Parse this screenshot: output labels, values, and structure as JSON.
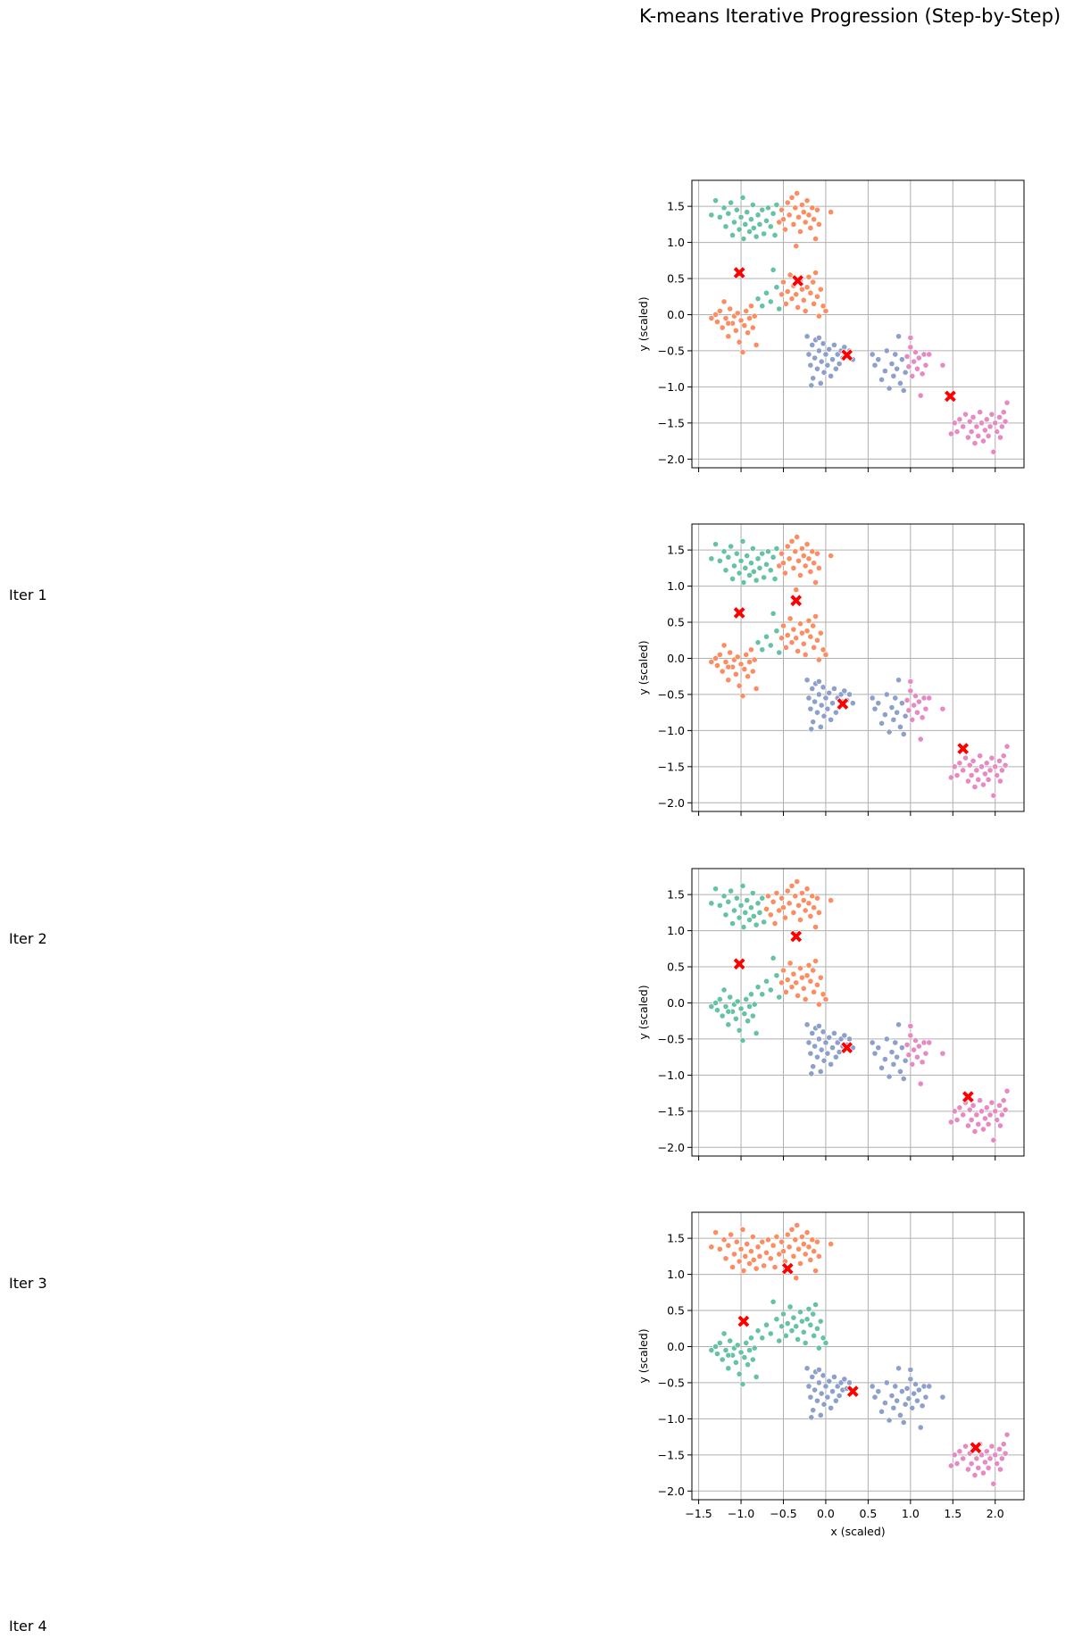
{
  "figure": {
    "title": "K-means Iterative Progression (Step-by-Step)",
    "row_labels": [
      "Iter 1",
      "Iter 2",
      "Iter 3",
      "Iter 4"
    ]
  },
  "colors": {
    "green": "#66c2a5",
    "orange": "#fc8d62",
    "blue": "#8da0cb",
    "pink": "#e78ac3",
    "centroid": "#ff0000",
    "grid": "#b0b0b0"
  },
  "chart_data": [
    {
      "type": "scatter",
      "title": "",
      "xlabel": "",
      "ylabel": "y (scaled)",
      "xlim": [
        -1.58,
        2.34
      ],
      "ylim": [
        -2.12,
        1.86
      ],
      "xticks": [
        -1.5,
        -1.0,
        -0.5,
        0.0,
        0.5,
        1.0,
        1.5,
        2.0
      ],
      "yticks": [
        -2.0,
        -1.5,
        -1.0,
        -0.5,
        0.0,
        0.5,
        1.0,
        1.5
      ],
      "grid": true,
      "clusters": [
        {
          "name": "",
          "color": "green",
          "groups": [
            "G1a",
            "G1b",
            "G2b_left"
          ]
        },
        {
          "name": "",
          "color": "orange",
          "groups": [
            "G1c",
            "G2a",
            "G2b_right"
          ]
        },
        {
          "name": "",
          "color": "blue",
          "groups": [
            "G3",
            "G4a"
          ]
        },
        {
          "name": "",
          "color": "pink",
          "groups": [
            "G4b",
            "G5"
          ]
        }
      ],
      "centroids": [
        [
          -1.02,
          0.58
        ],
        [
          -0.33,
          0.47
        ],
        [
          0.25,
          -0.56
        ],
        [
          1.47,
          -1.13
        ]
      ]
    },
    {
      "type": "scatter",
      "title": "",
      "xlabel": "",
      "ylabel": "y (scaled)",
      "xlim": [
        -1.58,
        2.34
      ],
      "ylim": [
        -2.12,
        1.86
      ],
      "xticks": [
        -1.5,
        -1.0,
        -0.5,
        0.0,
        0.5,
        1.0,
        1.5,
        2.0
      ],
      "yticks": [
        -2.0,
        -1.5,
        -1.0,
        -0.5,
        0.0,
        0.5,
        1.0,
        1.5
      ],
      "grid": true,
      "clusters": [
        {
          "name": "",
          "color": "green",
          "groups": [
            "G1a",
            "G1b",
            "G2b_left"
          ]
        },
        {
          "name": "",
          "color": "orange",
          "groups": [
            "G1c",
            "G2a",
            "G2b_right"
          ]
        },
        {
          "name": "",
          "color": "blue",
          "groups": [
            "G3",
            "G4a"
          ]
        },
        {
          "name": "",
          "color": "pink",
          "groups": [
            "G4b",
            "G5"
          ]
        }
      ],
      "centroids": [
        [
          -1.02,
          0.63
        ],
        [
          -0.35,
          0.8
        ],
        [
          0.2,
          -0.63
        ],
        [
          1.62,
          -1.25
        ]
      ]
    },
    {
      "type": "scatter",
      "title": "",
      "xlabel": "",
      "ylabel": "y (scaled)",
      "xlim": [
        -1.58,
        2.34
      ],
      "ylim": [
        -2.12,
        1.86
      ],
      "xticks": [
        -1.5,
        -1.0,
        -0.5,
        0.0,
        0.5,
        1.0,
        1.5,
        2.0
      ],
      "yticks": [
        -2.0,
        -1.5,
        -1.0,
        -0.5,
        0.0,
        0.5,
        1.0,
        1.5
      ],
      "grid": true,
      "clusters": [
        {
          "name": "",
          "color": "green",
          "groups": [
            "G1a",
            "G2a",
            "G2b_left"
          ]
        },
        {
          "name": "",
          "color": "orange",
          "groups": [
            "G1b",
            "G1c",
            "G2b_right"
          ]
        },
        {
          "name": "",
          "color": "blue",
          "groups": [
            "G3",
            "G4a"
          ]
        },
        {
          "name": "",
          "color": "pink",
          "groups": [
            "G4b",
            "G5"
          ]
        }
      ],
      "centroids": [
        [
          -1.02,
          0.54
        ],
        [
          -0.35,
          0.92
        ],
        [
          0.25,
          -0.62
        ],
        [
          1.68,
          -1.3
        ]
      ]
    },
    {
      "type": "scatter",
      "title": "",
      "xlabel": "x (scaled)",
      "ylabel": "y (scaled)",
      "xlim": [
        -1.58,
        2.34
      ],
      "ylim": [
        -2.12,
        1.86
      ],
      "xticks": [
        -1.5,
        -1.0,
        -0.5,
        0.0,
        0.5,
        1.0,
        1.5,
        2.0
      ],
      "yticks": [
        -2.0,
        -1.5,
        -1.0,
        -0.5,
        0.0,
        0.5,
        1.0,
        1.5
      ],
      "grid": true,
      "clusters": [
        {
          "name": "",
          "color": "green",
          "groups": [
            "G2a",
            "G2b_left",
            "G2b_right"
          ]
        },
        {
          "name": "",
          "color": "orange",
          "groups": [
            "G1a",
            "G1b",
            "G1c"
          ]
        },
        {
          "name": "",
          "color": "blue",
          "groups": [
            "G3",
            "G4a",
            "G4b"
          ]
        },
        {
          "name": "",
          "color": "pink",
          "groups": [
            "G5"
          ]
        }
      ],
      "centroids": [
        [
          -0.97,
          0.35
        ],
        [
          -0.45,
          1.08
        ],
        [
          0.32,
          -0.62
        ],
        [
          1.77,
          -1.4
        ]
      ]
    }
  ],
  "point_groups": {
    "G1a": [
      [
        -1.35,
        1.38
      ],
      [
        -1.3,
        1.58
      ],
      [
        -1.25,
        1.35
      ],
      [
        -1.2,
        1.48
      ],
      [
        -1.18,
        1.22
      ],
      [
        -1.15,
        1.4
      ],
      [
        -1.12,
        1.55
      ],
      [
        -1.1,
        1.1
      ],
      [
        -1.08,
        1.28
      ],
      [
        -1.05,
        1.45
      ],
      [
        -1.02,
        1.18
      ],
      [
        -1.0,
        1.35
      ],
      [
        -0.98,
        1.62
      ],
      [
        -0.97,
        1.05
      ],
      [
        -0.95,
        1.25
      ],
      [
        -0.93,
        1.42
      ],
      [
        -0.9,
        1.15
      ],
      [
        -0.88,
        1.32
      ],
      [
        -0.86,
        1.52
      ],
      [
        -0.85,
        1.2
      ],
      [
        -0.82,
        1.08
      ],
      [
        -0.8,
        1.38
      ],
      [
        -0.78,
        1.25
      ],
      [
        -0.75,
        1.45
      ],
      [
        -0.73,
        1.12
      ]
    ],
    "G1b": [
      [
        -0.7,
        1.3
      ],
      [
        -0.68,
        1.48
      ],
      [
        -0.65,
        1.22
      ],
      [
        -0.62,
        1.4
      ],
      [
        -0.6,
        1.1
      ],
      [
        -0.58,
        1.52
      ]
    ],
    "G1c": [
      [
        -0.55,
        1.28
      ],
      [
        -0.52,
        1.45
      ],
      [
        -0.5,
        1.32
      ],
      [
        -0.48,
        1.18
      ],
      [
        -0.45,
        1.55
      ],
      [
        -0.43,
        1.38
      ],
      [
        -0.4,
        1.62
      ],
      [
        -0.38,
        1.25
      ],
      [
        -0.36,
        1.48
      ],
      [
        -0.34,
        1.68
      ],
      [
        -0.32,
        1.35
      ],
      [
        -0.3,
        1.15
      ],
      [
        -0.28,
        1.52
      ],
      [
        -0.26,
        1.42
      ],
      [
        -0.24,
        1.28
      ],
      [
        -0.22,
        1.58
      ],
      [
        -0.2,
        1.38
      ],
      [
        -0.18,
        1.2
      ],
      [
        -0.16,
        1.48
      ],
      [
        -0.14,
        1.32
      ],
      [
        -0.12,
        1.05
      ],
      [
        -0.1,
        1.45
      ],
      [
        -0.08,
        1.25
      ],
      [
        -0.35,
        0.95
      ],
      [
        0.06,
        1.42
      ]
    ],
    "G2a": [
      [
        -1.35,
        -0.05
      ],
      [
        -1.3,
        0.0
      ],
      [
        -1.28,
        -0.1
      ],
      [
        -1.25,
        0.05
      ],
      [
        -1.22,
        -0.18
      ],
      [
        -1.2,
        0.18
      ],
      [
        -1.18,
        -0.05
      ],
      [
        -1.15,
        -0.3
      ],
      [
        -1.13,
        0.08
      ],
      [
        -1.1,
        -0.12
      ],
      [
        -1.08,
        -0.02
      ],
      [
        -1.06,
        -0.22
      ],
      [
        -1.04,
        0.02
      ],
      [
        -1.02,
        -0.38
      ],
      [
        -1.0,
        -0.08
      ],
      [
        -0.98,
        -0.52
      ],
      [
        -0.96,
        -0.15
      ],
      [
        -0.94,
        0.05
      ],
      [
        -0.92,
        -0.25
      ],
      [
        -0.9,
        -0.05
      ],
      [
        -0.88,
        0.12
      ],
      [
        -0.86,
        -0.18
      ],
      [
        -0.84,
        -0.02
      ],
      [
        -0.82,
        -0.42
      ],
      [
        -1.15,
        -0.12
      ]
    ],
    "G2b_left": [
      [
        -0.8,
        0.22
      ],
      [
        -0.75,
        0.12
      ],
      [
        -0.7,
        0.3
      ],
      [
        -0.65,
        0.18
      ],
      [
        -0.62,
        0.62
      ],
      [
        -0.58,
        0.38
      ],
      [
        -0.55,
        0.08
      ]
    ],
    "G2b_right": [
      [
        -0.52,
        0.28
      ],
      [
        -0.5,
        0.45
      ],
      [
        -0.47,
        0.15
      ],
      [
        -0.45,
        0.32
      ],
      [
        -0.42,
        0.55
      ],
      [
        -0.4,
        0.22
      ],
      [
        -0.38,
        0.4
      ],
      [
        -0.35,
        0.28
      ],
      [
        -0.33,
        0.1
      ],
      [
        -0.3,
        0.48
      ],
      [
        -0.28,
        0.35
      ],
      [
        -0.26,
        0.2
      ],
      [
        -0.24,
        0.05
      ],
      [
        -0.22,
        0.38
      ],
      [
        -0.2,
        0.52
      ],
      [
        -0.18,
        0.3
      ],
      [
        -0.15,
        0.45
      ],
      [
        -0.14,
        0.15
      ],
      [
        -0.12,
        0.58
      ],
      [
        -0.1,
        0.25
      ],
      [
        -0.08,
        -0.02
      ],
      [
        -0.06,
        0.35
      ],
      [
        -0.03,
        0.12
      ],
      [
        0.0,
        0.05
      ]
    ],
    "G3": [
      [
        -0.22,
        -0.3
      ],
      [
        -0.2,
        -0.55
      ],
      [
        -0.18,
        -0.7
      ],
      [
        -0.16,
        -0.42
      ],
      [
        -0.15,
        -0.88
      ],
      [
        -0.13,
        -0.6
      ],
      [
        -0.12,
        -0.35
      ],
      [
        -0.1,
        -0.75
      ],
      [
        -0.08,
        -0.5
      ],
      [
        -0.06,
        -0.95
      ],
      [
        -0.05,
        -0.65
      ],
      [
        -0.03,
        -0.4
      ],
      [
        -0.02,
        -0.8
      ],
      [
        0.0,
        -0.55
      ],
      [
        0.02,
        -0.7
      ],
      [
        0.04,
        -0.48
      ],
      [
        0.06,
        -0.85
      ],
      [
        0.08,
        -0.62
      ],
      [
        0.1,
        -0.42
      ],
      [
        0.12,
        -0.75
      ],
      [
        0.14,
        -0.55
      ],
      [
        0.16,
        -0.68
      ],
      [
        0.18,
        -0.5
      ],
      [
        0.2,
        -0.6
      ],
      [
        0.22,
        -0.45
      ],
      [
        0.25,
        -0.58
      ],
      [
        0.28,
        -0.5
      ],
      [
        0.32,
        -0.62
      ],
      [
        -0.17,
        -0.98
      ],
      [
        -0.08,
        -0.32
      ]
    ],
    "G4a": [
      [
        0.55,
        -0.55
      ],
      [
        0.58,
        -0.7
      ],
      [
        0.62,
        -0.62
      ],
      [
        0.66,
        -0.9
      ],
      [
        0.7,
        -0.78
      ],
      [
        0.72,
        -0.5
      ],
      [
        0.75,
        -1.02
      ],
      [
        0.78,
        -0.68
      ],
      [
        0.8,
        -0.85
      ],
      [
        0.82,
        -0.55
      ],
      [
        0.84,
        -0.75
      ],
      [
        0.86,
        -0.3
      ],
      [
        0.88,
        -0.95
      ],
      [
        0.9,
        -0.62
      ],
      [
        0.92,
        -1.05
      ],
      [
        0.94,
        -0.8
      ]
    ],
    "G4b": [
      [
        0.96,
        -0.58
      ],
      [
        0.98,
        -0.72
      ],
      [
        1.0,
        -0.45
      ],
      [
        1.02,
        -0.85
      ],
      [
        1.04,
        -0.65
      ],
      [
        1.06,
        -0.52
      ],
      [
        1.08,
        -0.75
      ],
      [
        1.1,
        -0.6
      ],
      [
        1.12,
        -1.12
      ],
      [
        1.14,
        -0.82
      ],
      [
        1.16,
        -0.55
      ],
      [
        1.18,
        -0.7
      ],
      [
        1.22,
        -0.55
      ],
      [
        1.38,
        -0.7
      ],
      [
        1.0,
        -0.32
      ]
    ],
    "G5": [
      [
        1.52,
        -1.5
      ],
      [
        1.55,
        -1.62
      ],
      [
        1.58,
        -1.45
      ],
      [
        1.62,
        -1.55
      ],
      [
        1.65,
        -1.38
      ],
      [
        1.68,
        -1.7
      ],
      [
        1.7,
        -1.48
      ],
      [
        1.72,
        -1.62
      ],
      [
        1.74,
        -1.42
      ],
      [
        1.76,
        -1.78
      ],
      [
        1.78,
        -1.55
      ],
      [
        1.8,
        -1.68
      ],
      [
        1.82,
        -1.35
      ],
      [
        1.84,
        -1.5
      ],
      [
        1.86,
        -1.75
      ],
      [
        1.88,
        -1.6
      ],
      [
        1.9,
        -1.45
      ],
      [
        1.92,
        -1.68
      ],
      [
        1.94,
        -1.55
      ],
      [
        1.96,
        -1.38
      ],
      [
        1.98,
        -1.9
      ],
      [
        2.0,
        -1.5
      ],
      [
        2.02,
        -1.62
      ],
      [
        2.05,
        -1.42
      ],
      [
        2.08,
        -1.55
      ],
      [
        2.1,
        -1.35
      ],
      [
        2.12,
        -1.48
      ],
      [
        2.14,
        -1.22
      ],
      [
        1.48,
        -1.65
      ],
      [
        2.06,
        -1.7
      ]
    ]
  }
}
